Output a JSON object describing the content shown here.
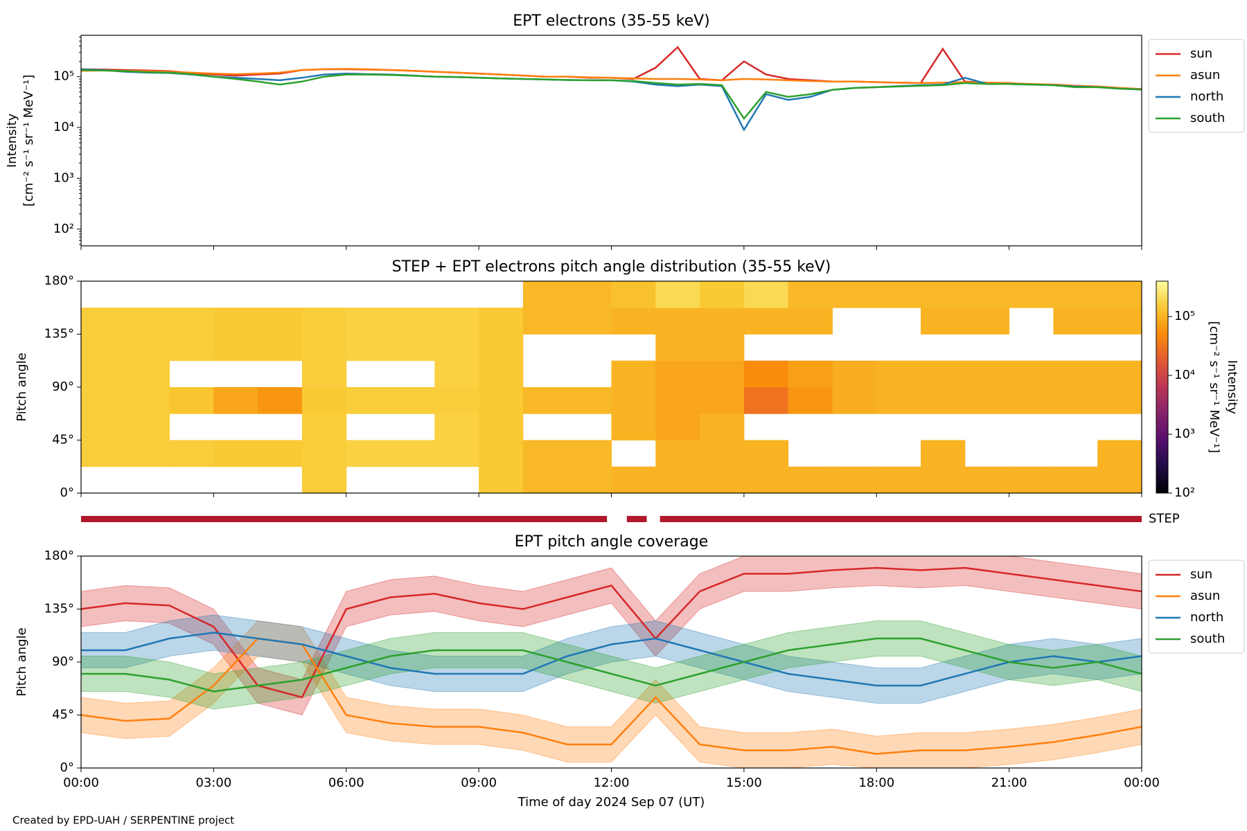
{
  "chart_data": [
    {
      "type": "line",
      "title": "EPT electrons (35-55 keV)",
      "ylabel": [
        "Intensity",
        "[cm⁻² s⁻¹ sr⁻¹ MeV⁻¹]"
      ],
      "log_y": true,
      "ylim": [
        47,
        650000
      ],
      "yticks": [
        {
          "value": 100,
          "label": "10²"
        },
        {
          "value": 1000,
          "label": "10³"
        },
        {
          "value": 10000,
          "label": "10⁴"
        },
        {
          "value": 100000,
          "label": "10⁵"
        }
      ],
      "xlim": [
        0,
        24
      ],
      "xticks": [
        0,
        3,
        6,
        9,
        12,
        15,
        18,
        21,
        24
      ],
      "legend": "outside right",
      "x": [
        0,
        0.5,
        1,
        1.5,
        2,
        2.5,
        3,
        3.5,
        4,
        4.5,
        5,
        5.5,
        6,
        6.5,
        7,
        7.5,
        8,
        8.5,
        9,
        9.5,
        10,
        10.5,
        11,
        11.5,
        12,
        12.5,
        13,
        13.5,
        14,
        14.5,
        15,
        15.5,
        16,
        16.5,
        17,
        17.5,
        18,
        18.5,
        19,
        19.5,
        20,
        20.5,
        21,
        21.5,
        22,
        22.5,
        23,
        23.5,
        24
      ],
      "series": [
        {
          "name": "sun",
          "color": "#d62728",
          "values": [
            140000,
            138000,
            135000,
            132000,
            128000,
            118000,
            110000,
            105000,
            110000,
            115000,
            135000,
            140000,
            140000,
            138000,
            135000,
            130000,
            125000,
            120000,
            115000,
            110000,
            105000,
            100000,
            100000,
            95000,
            95000,
            90000,
            150000,
            380000,
            90000,
            85000,
            200000,
            110000,
            90000,
            85000,
            80000,
            80000,
            78000,
            76000,
            75000,
            350000,
            80000,
            76000,
            75000,
            70000,
            70000,
            66000,
            64000,
            60000,
            57000
          ]
        },
        {
          "name": "asun",
          "color": "#ff7f0e",
          "values": [
            130000,
            132000,
            130000,
            128000,
            125000,
            120000,
            115000,
            112000,
            115000,
            120000,
            135000,
            140000,
            142000,
            140000,
            135000,
            130000,
            125000,
            120000,
            115000,
            110000,
            105000,
            100000,
            100000,
            97000,
            95000,
            92000,
            90000,
            90000,
            88000,
            85000,
            90000,
            88000,
            85000,
            82000,
            80000,
            80000,
            78000,
            76000,
            75000,
            76000,
            78000,
            76000,
            74000,
            72000,
            70000,
            66000,
            64000,
            60000,
            57000
          ]
        },
        {
          "name": "north",
          "color": "#1f77b4",
          "values": [
            140000,
            135000,
            125000,
            120000,
            118000,
            110000,
            100000,
            95000,
            90000,
            85000,
            95000,
            110000,
            115000,
            112000,
            110000,
            105000,
            100000,
            98000,
            95000,
            92000,
            90000,
            88000,
            86000,
            85000,
            85000,
            80000,
            70000,
            65000,
            70000,
            65000,
            9000,
            45000,
            35000,
            40000,
            55000,
            60000,
            62000,
            65000,
            68000,
            70000,
            95000,
            72000,
            72000,
            70000,
            68000,
            64000,
            62000,
            58000,
            56000
          ]
        },
        {
          "name": "south",
          "color": "#2ca02c",
          "values": [
            135000,
            132000,
            128000,
            122000,
            120000,
            112000,
            100000,
            90000,
            80000,
            70000,
            80000,
            100000,
            110000,
            110000,
            108000,
            104000,
            100000,
            98000,
            95000,
            92000,
            90000,
            88000,
            86000,
            85000,
            85000,
            82000,
            75000,
            70000,
            72000,
            68000,
            15000,
            50000,
            40000,
            45000,
            55000,
            60000,
            62000,
            64000,
            66000,
            68000,
            75000,
            72000,
            72000,
            70000,
            68000,
            62000,
            62000,
            58000,
            56000
          ]
        }
      ]
    },
    {
      "type": "heatmap",
      "title": "STEP + EPT electrons pitch angle distribution (35-55 keV)",
      "ylabel": "Pitch angle",
      "ylim": [
        0,
        180
      ],
      "yticks": [
        {
          "value": 0,
          "label": "0°"
        },
        {
          "value": 45,
          "label": "45°"
        },
        {
          "value": 90,
          "label": "90°"
        },
        {
          "value": 135,
          "label": "135°"
        },
        {
          "value": 180,
          "label": "180°"
        }
      ],
      "xlim": [
        0,
        24
      ],
      "xticks": [
        0,
        3,
        6,
        9,
        12,
        15,
        18,
        21,
        24
      ],
      "x_edges": [
        0,
        1,
        2,
        3,
        4,
        5,
        6,
        7,
        8,
        9,
        10,
        11,
        12,
        13,
        14,
        15,
        16,
        17,
        18,
        19,
        20,
        21,
        22,
        23,
        24
      ],
      "pitch_edges": [
        0,
        22.5,
        45,
        67.5,
        90,
        112.5,
        135,
        157.5,
        180
      ],
      "colormap": "inferno",
      "log_c": true,
      "clim": [
        100,
        400000
      ],
      "cticks": [
        {
          "value": 100,
          "label": "10²"
        },
        {
          "value": 1000,
          "label": "10³"
        },
        {
          "value": 10000,
          "label": "10⁴"
        },
        {
          "value": 100000,
          "label": "10⁵"
        }
      ],
      "clabel": [
        "Intensity",
        "[cm⁻² s⁻¹ sr⁻¹ MeV⁻¹]"
      ],
      "values": [
        [
          null,
          160000,
          160000,
          160000,
          160000,
          160000,
          160000,
          null
        ],
        [
          null,
          160000,
          160000,
          160000,
          160000,
          160000,
          160000,
          null
        ],
        [
          null,
          160000,
          null,
          140000,
          null,
          160000,
          160000,
          null
        ],
        [
          null,
          150000,
          null,
          80000,
          null,
          150000,
          150000,
          null
        ],
        [
          null,
          150000,
          null,
          60000,
          null,
          150000,
          150000,
          null
        ],
        [
          160000,
          160000,
          160000,
          150000,
          160000,
          160000,
          160000,
          null
        ],
        [
          null,
          170000,
          null,
          160000,
          null,
          170000,
          170000,
          null
        ],
        [
          null,
          170000,
          null,
          160000,
          null,
          170000,
          170000,
          null
        ],
        [
          null,
          170000,
          170000,
          160000,
          170000,
          170000,
          170000,
          null
        ],
        [
          150000,
          150000,
          150000,
          150000,
          150000,
          150000,
          150000,
          null
        ],
        [
          110000,
          110000,
          null,
          110000,
          null,
          null,
          110000,
          110000
        ],
        [
          110000,
          110000,
          null,
          110000,
          null,
          null,
          110000,
          110000
        ],
        [
          100000,
          null,
          100000,
          100000,
          100000,
          null,
          100000,
          130000
        ],
        [
          100000,
          100000,
          80000,
          80000,
          80000,
          100000,
          100000,
          200000
        ],
        [
          100000,
          100000,
          100000,
          80000,
          80000,
          100000,
          100000,
          150000
        ],
        [
          100000,
          100000,
          null,
          30000,
          50000,
          null,
          100000,
          200000
        ],
        [
          100000,
          null,
          null,
          60000,
          70000,
          null,
          100000,
          110000
        ],
        [
          100000,
          null,
          null,
          90000,
          90000,
          null,
          null,
          110000
        ],
        [
          100000,
          null,
          null,
          100000,
          100000,
          null,
          null,
          110000
        ],
        [
          100000,
          100000,
          null,
          100000,
          100000,
          null,
          100000,
          110000
        ],
        [
          100000,
          null,
          null,
          100000,
          100000,
          null,
          100000,
          110000
        ],
        [
          100000,
          null,
          null,
          100000,
          100000,
          null,
          null,
          110000
        ],
        [
          100000,
          null,
          null,
          100000,
          100000,
          null,
          100000,
          110000
        ],
        [
          100000,
          100000,
          null,
          100000,
          100000,
          null,
          100000,
          110000
        ]
      ]
    },
    {
      "type": "timeline",
      "label": "STEP",
      "color": "#b2182b",
      "xlim": [
        0,
        24
      ],
      "intervals": [
        [
          0,
          11.9
        ],
        [
          12.35,
          12.8
        ],
        [
          13.1,
          24
        ]
      ]
    },
    {
      "type": "band_line",
      "title": "EPT pitch angle coverage",
      "ylabel": "Pitch angle",
      "xlabel": "Time of day 2024 Sep 07 (UT)",
      "ylim": [
        0,
        180
      ],
      "yticks": [
        {
          "value": 0,
          "label": "0°"
        },
        {
          "value": 45,
          "label": "45°"
        },
        {
          "value": 90,
          "label": "90°"
        },
        {
          "value": 135,
          "label": "135°"
        },
        {
          "value": 180,
          "label": "180°"
        }
      ],
      "xlim": [
        0,
        24
      ],
      "xticks": [
        {
          "value": 0,
          "label": "00:00"
        },
        {
          "value": 3,
          "label": "03:00"
        },
        {
          "value": 6,
          "label": "06:00"
        },
        {
          "value": 9,
          "label": "09:00"
        },
        {
          "value": 12,
          "label": "12:00"
        },
        {
          "value": 15,
          "label": "15:00"
        },
        {
          "value": 18,
          "label": "18:00"
        },
        {
          "value": 21,
          "label": "21:00"
        },
        {
          "value": 24,
          "label": "00:00"
        }
      ],
      "legend": "outside right",
      "x": [
        0,
        1,
        2,
        3,
        4,
        5,
        6,
        7,
        8,
        9,
        10,
        11,
        12,
        13,
        14,
        15,
        16,
        17,
        18,
        19,
        20,
        21,
        22,
        23,
        24
      ],
      "series": [
        {
          "name": "sun",
          "color": "#d62728",
          "values": [
            135,
            140,
            138,
            120,
            70,
            60,
            135,
            145,
            148,
            140,
            135,
            145,
            155,
            110,
            150,
            165,
            165,
            168,
            170,
            168,
            170,
            165,
            160,
            155,
            150
          ],
          "lower": [
            120,
            125,
            123,
            105,
            55,
            45,
            120,
            130,
            133,
            125,
            120,
            130,
            140,
            95,
            135,
            150,
            150,
            153,
            155,
            153,
            155,
            150,
            145,
            140,
            135
          ],
          "upper": [
            150,
            155,
            153,
            135,
            85,
            75,
            150,
            160,
            163,
            155,
            150,
            160,
            170,
            125,
            165,
            180,
            180,
            180,
            180,
            180,
            180,
            180,
            175,
            170,
            165
          ]
        },
        {
          "name": "asun",
          "color": "#ff7f0e",
          "values": [
            45,
            40,
            42,
            70,
            110,
            105,
            45,
            38,
            35,
            35,
            30,
            20,
            20,
            60,
            20,
            15,
            15,
            18,
            12,
            15,
            15,
            18,
            22,
            28,
            35
          ],
          "lower": [
            30,
            25,
            27,
            55,
            95,
            90,
            30,
            23,
            20,
            20,
            15,
            5,
            5,
            45,
            5,
            0,
            0,
            3,
            0,
            0,
            0,
            3,
            7,
            13,
            20
          ],
          "upper": [
            60,
            55,
            57,
            85,
            125,
            120,
            60,
            53,
            50,
            50,
            45,
            35,
            35,
            75,
            35,
            30,
            30,
            33,
            27,
            30,
            30,
            33,
            37,
            43,
            50
          ]
        },
        {
          "name": "north",
          "color": "#1f77b4",
          "values": [
            100,
            100,
            110,
            115,
            110,
            105,
            95,
            85,
            80,
            80,
            80,
            95,
            105,
            110,
            100,
            90,
            80,
            75,
            70,
            70,
            80,
            90,
            95,
            90,
            95
          ],
          "lower": [
            85,
            85,
            95,
            100,
            95,
            90,
            80,
            70,
            65,
            65,
            65,
            80,
            90,
            95,
            85,
            75,
            65,
            60,
            55,
            55,
            65,
            75,
            80,
            75,
            80
          ],
          "upper": [
            115,
            115,
            125,
            130,
            125,
            120,
            110,
            100,
            95,
            95,
            95,
            110,
            120,
            125,
            115,
            105,
            95,
            90,
            85,
            85,
            95,
            105,
            110,
            105,
            110
          ]
        },
        {
          "name": "south",
          "color": "#2ca02c",
          "values": [
            80,
            80,
            75,
            65,
            70,
            75,
            85,
            95,
            100,
            100,
            100,
            90,
            80,
            70,
            80,
            90,
            100,
            105,
            110,
            110,
            100,
            90,
            85,
            90,
            80
          ],
          "lower": [
            65,
            65,
            60,
            50,
            55,
            60,
            70,
            80,
            85,
            85,
            85,
            75,
            65,
            55,
            65,
            75,
            85,
            90,
            95,
            95,
            85,
            75,
            70,
            75,
            65
          ],
          "upper": [
            95,
            95,
            90,
            80,
            85,
            90,
            100,
            110,
            115,
            115,
            115,
            105,
            95,
            85,
            95,
            105,
            115,
            120,
            125,
            125,
            115,
            105,
            100,
            105,
            95
          ]
        }
      ]
    }
  ],
  "footer": "Created by EPD-UAH / SERPENTINE project"
}
